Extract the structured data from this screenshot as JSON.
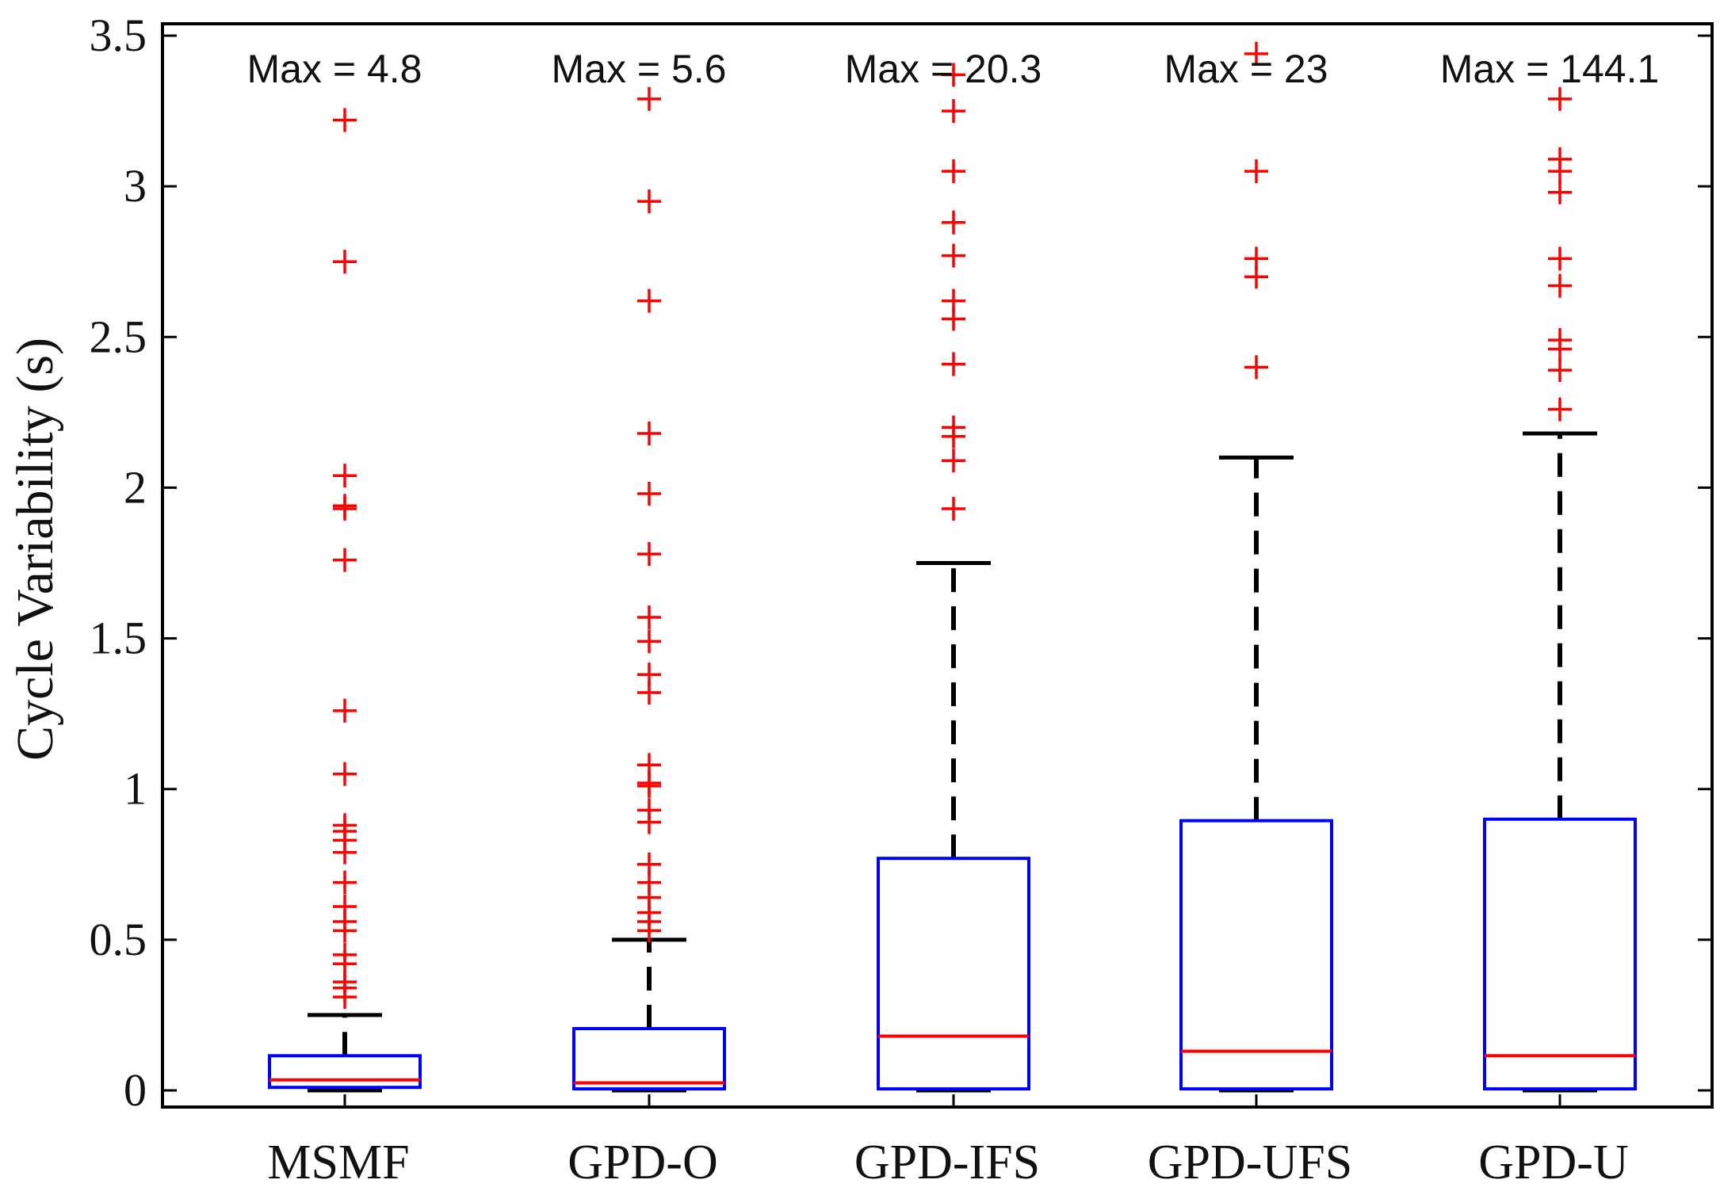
{
  "chart_data": {
    "type": "box",
    "title": "",
    "xlabel": "",
    "ylabel": "Cycle Variability (s)",
    "ylim": [
      0,
      3.5
    ],
    "yticks": [
      0,
      0.5,
      1,
      1.5,
      2,
      2.5,
      3,
      3.5
    ],
    "ytick_labels": [
      "0",
      "0.5",
      "1",
      "1.5",
      "2",
      "2.5",
      "3",
      "3.5"
    ],
    "grid": false,
    "colors": {
      "box": "#0000ff",
      "median": "#ff0000",
      "whisker": "#000000",
      "outlier": "#ff0000",
      "axis": "#000000"
    },
    "categories": [
      "MSMF",
      "GPD-O",
      "GPD-IFS",
      "GPD-UFS",
      "GPD-U"
    ],
    "max_labels": [
      "Max = 4.8",
      "Max = 5.6",
      "Max = 20.3",
      "Max = 23",
      "Max = 144.1"
    ],
    "boxes": [
      {
        "name": "MSMF",
        "whisker_low": 0,
        "q1": 0.01,
        "median": 0.035,
        "q3": 0.115,
        "whisker_high": 0.25,
        "outliers": [
          0.31,
          0.34,
          0.36,
          0.42,
          0.45,
          0.53,
          0.56,
          0.61,
          0.69,
          0.79,
          0.83,
          0.86,
          0.88,
          1.05,
          1.26,
          1.76,
          1.93,
          1.94,
          2.04,
          2.75,
          3.22
        ]
      },
      {
        "name": "GPD-O",
        "whisker_low": 0,
        "q1": 0.005,
        "median": 0.025,
        "q3": 0.205,
        "whisker_high": 0.5,
        "outliers": [
          0.53,
          0.56,
          0.59,
          0.64,
          0.69,
          0.75,
          0.89,
          0.93,
          1.01,
          1.02,
          1.08,
          1.32,
          1.38,
          1.49,
          1.57,
          1.78,
          1.98,
          2.18,
          2.62,
          2.95,
          3.29
        ]
      },
      {
        "name": "GPD-IFS",
        "whisker_low": 0,
        "q1": 0.005,
        "median": 0.18,
        "q3": 0.77,
        "whisker_high": 1.75,
        "outliers": [
          1.93,
          2.09,
          2.17,
          2.2,
          2.41,
          2.56,
          2.62,
          2.77,
          2.88,
          3.05,
          3.25,
          3.37
        ]
      },
      {
        "name": "GPD-UFS",
        "whisker_low": 0,
        "q1": 0.005,
        "median": 0.13,
        "q3": 0.895,
        "whisker_high": 2.1,
        "outliers": [
          2.4,
          2.7,
          2.76,
          3.05,
          3.44
        ]
      },
      {
        "name": "GPD-U",
        "whisker_low": 0,
        "q1": 0.005,
        "median": 0.115,
        "q3": 0.9,
        "whisker_high": 2.18,
        "outliers": [
          2.26,
          2.39,
          2.46,
          2.49,
          2.67,
          2.76,
          2.98,
          3.05,
          3.09,
          3.29
        ]
      }
    ]
  }
}
